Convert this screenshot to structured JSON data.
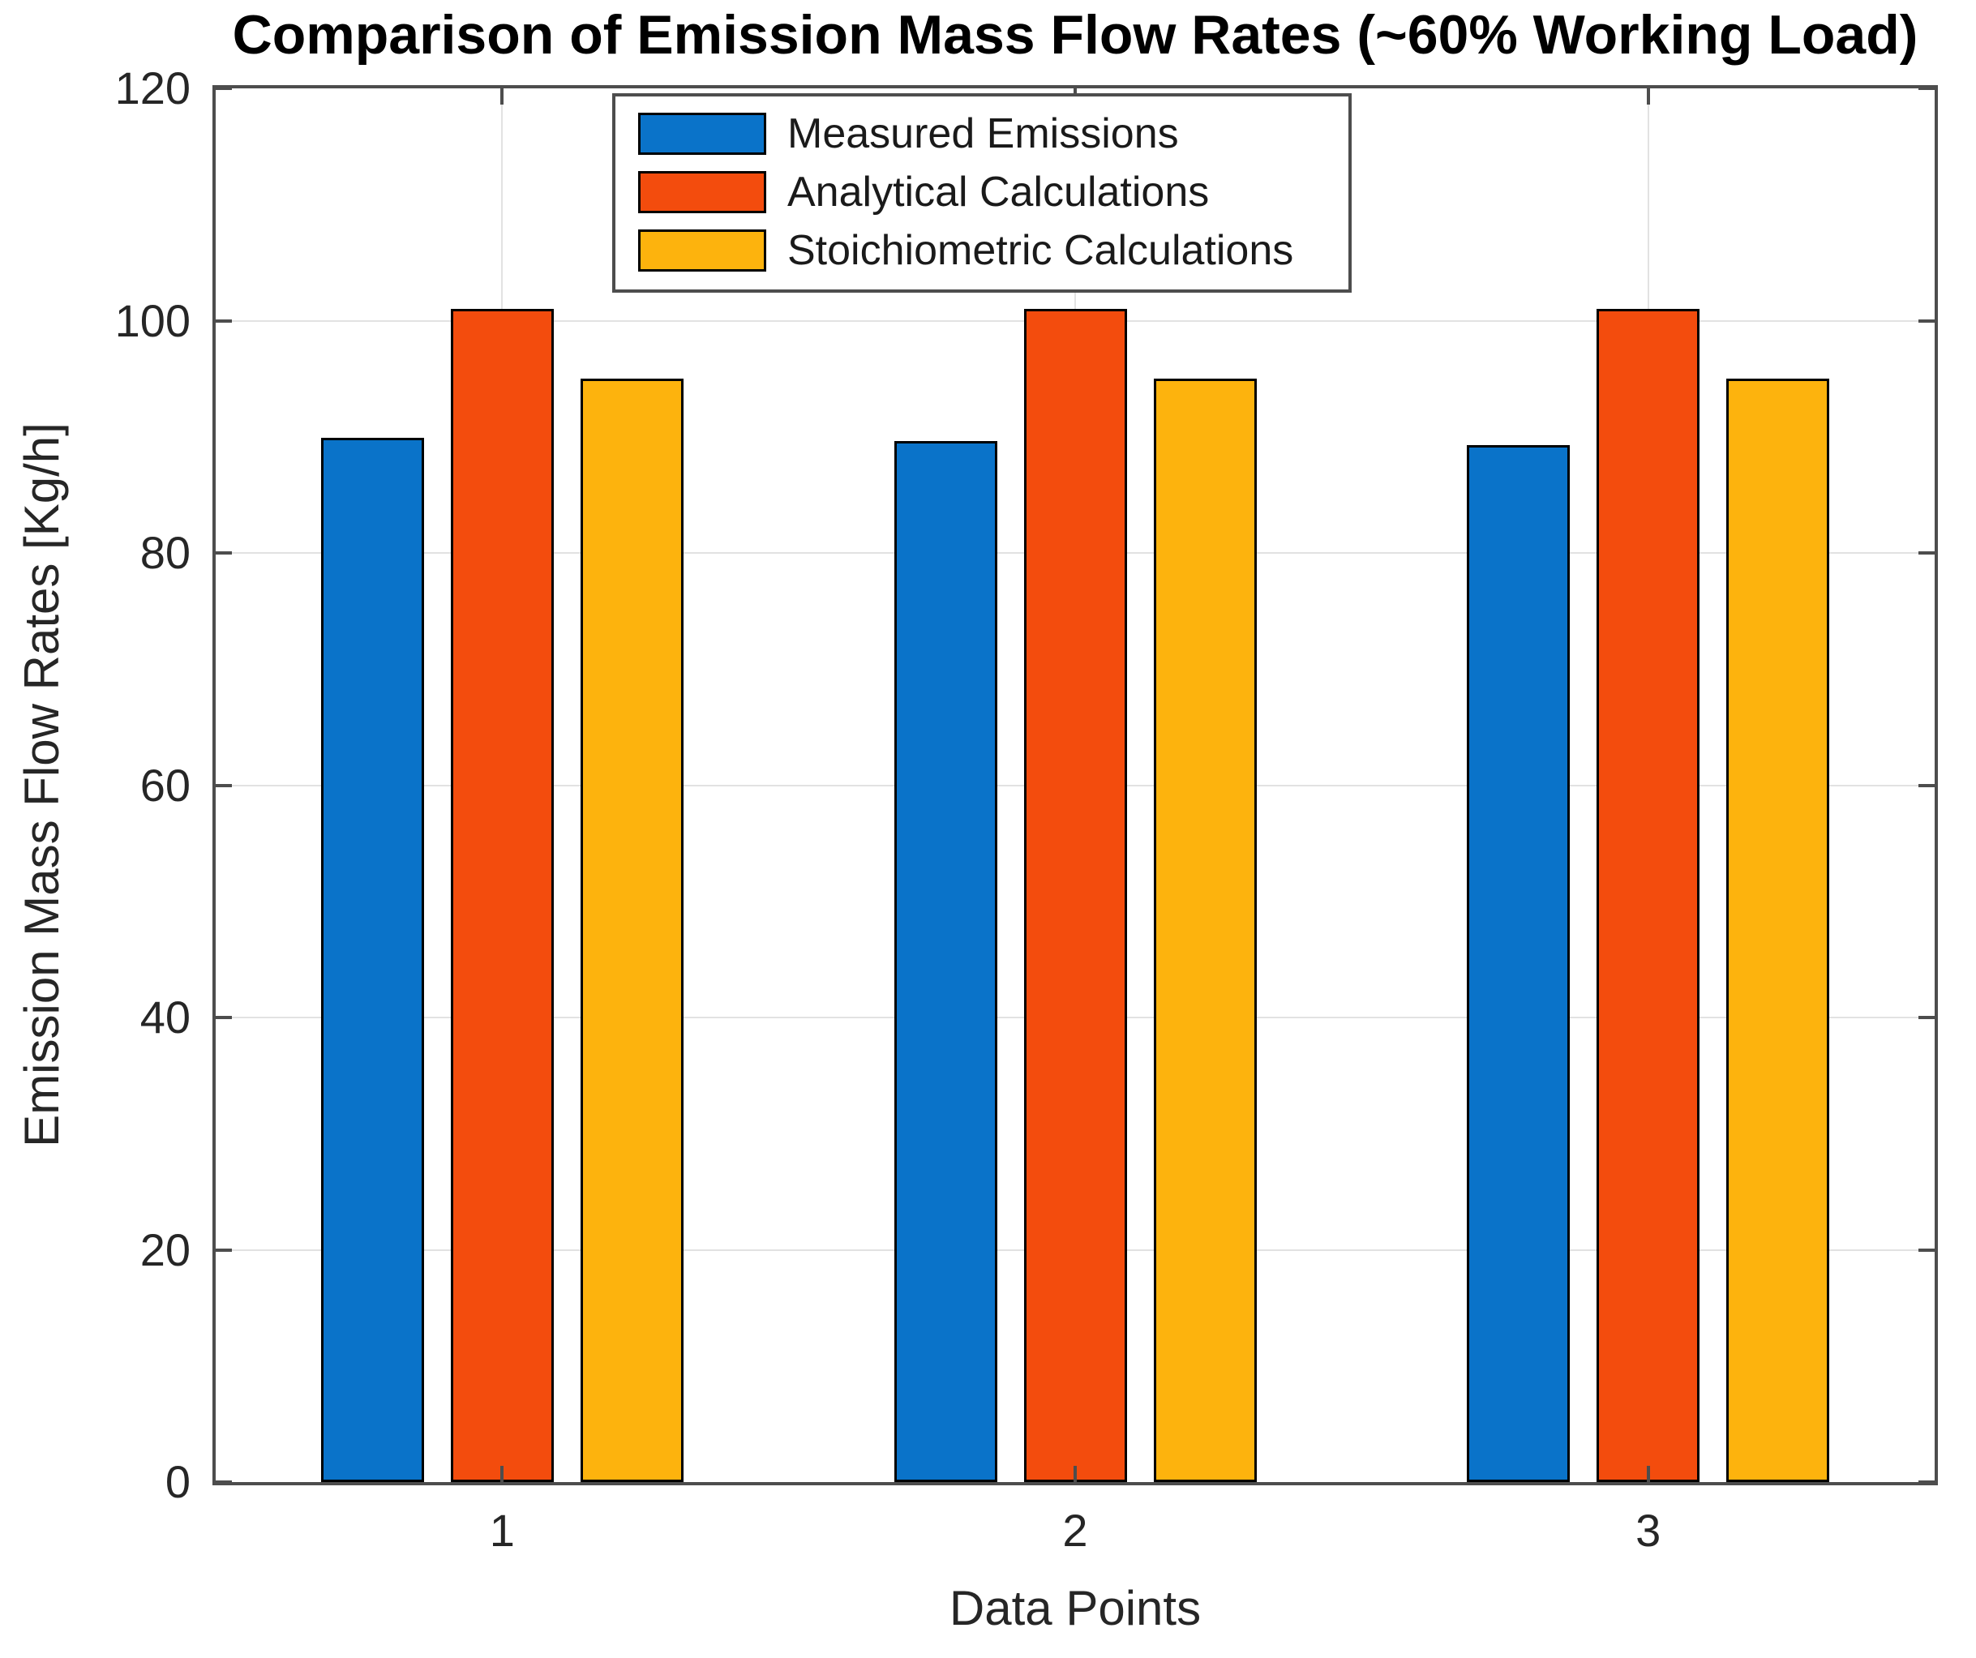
{
  "figure": {
    "background": "#ffffff"
  },
  "chart_data": {
    "type": "bar",
    "title": "Comparison of Emission Mass Flow Rates (~60% Working Load)",
    "xlabel": "Data Points",
    "ylabel": "Emission Mass Flow Rates [Kg/h]",
    "categories": [
      "1",
      "2",
      "3"
    ],
    "series": [
      {
        "name": "Measured Emissions",
        "color": "#0a73c9",
        "values": [
          89.9,
          89.6,
          89.3
        ]
      },
      {
        "name": "Analytical Calculations",
        "color": "#f34c0d",
        "values": [
          101,
          101,
          101
        ]
      },
      {
        "name": "Stoichiometric Calculations",
        "color": "#fdb30d",
        "values": [
          95,
          95,
          95
        ]
      }
    ],
    "ylim": [
      0,
      120
    ],
    "yticks": [
      0,
      20,
      40,
      60,
      80,
      100,
      120
    ],
    "grid": "on",
    "legend_position": "north",
    "bar_edge_color": "#000000",
    "axis_color": "#4d4d4d",
    "gridline_color": "#e2e2e2",
    "tick_label_color": "#262626",
    "title_color": "#000000"
  }
}
